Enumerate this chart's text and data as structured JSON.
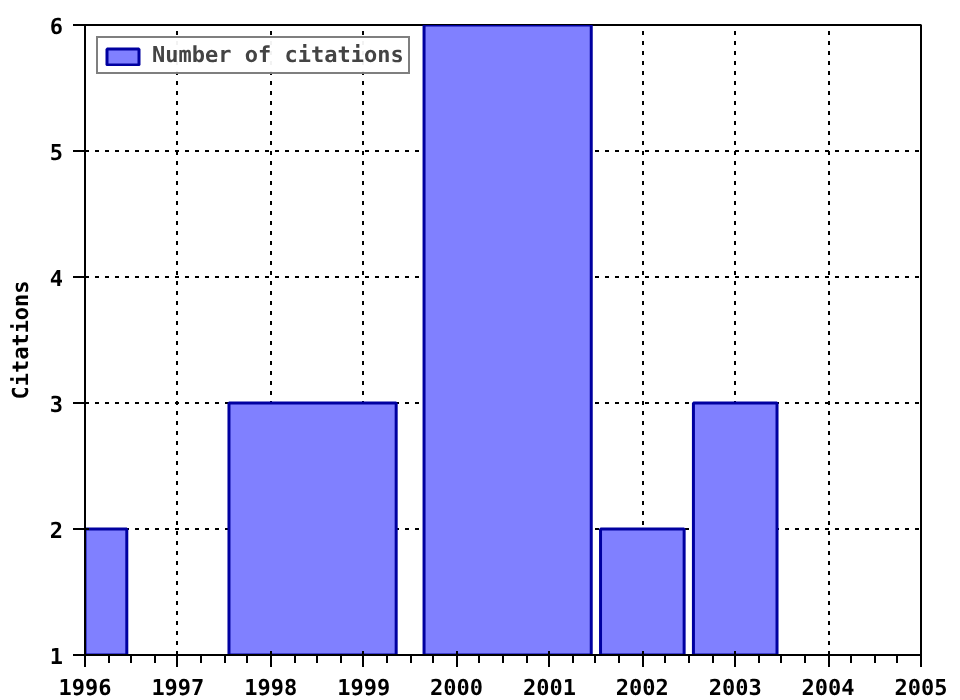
{
  "chart_data": {
    "type": "histogram",
    "ylabel": "Citations",
    "bins": [
      1996,
      1996.45,
      1997.55,
      1999.35,
      1999.65,
      2001.45,
      2001.55,
      2002.45,
      2002.55,
      2003.45
    ],
    "series": [
      {
        "name": "Number of citations",
        "color": "#8080ff",
        "values": [
          2,
          null,
          3,
          null,
          6,
          null,
          2,
          null,
          3
        ]
      }
    ],
    "xlim": [
      1996,
      2005
    ],
    "xticks": [
      1996,
      1997,
      1998,
      1999,
      2000,
      2001,
      2002,
      2003,
      2004,
      2005
    ],
    "ylim": [
      1,
      6
    ],
    "yticks": [
      1,
      2,
      3,
      4,
      5,
      6
    ],
    "grid": true,
    "legend": "top left"
  }
}
